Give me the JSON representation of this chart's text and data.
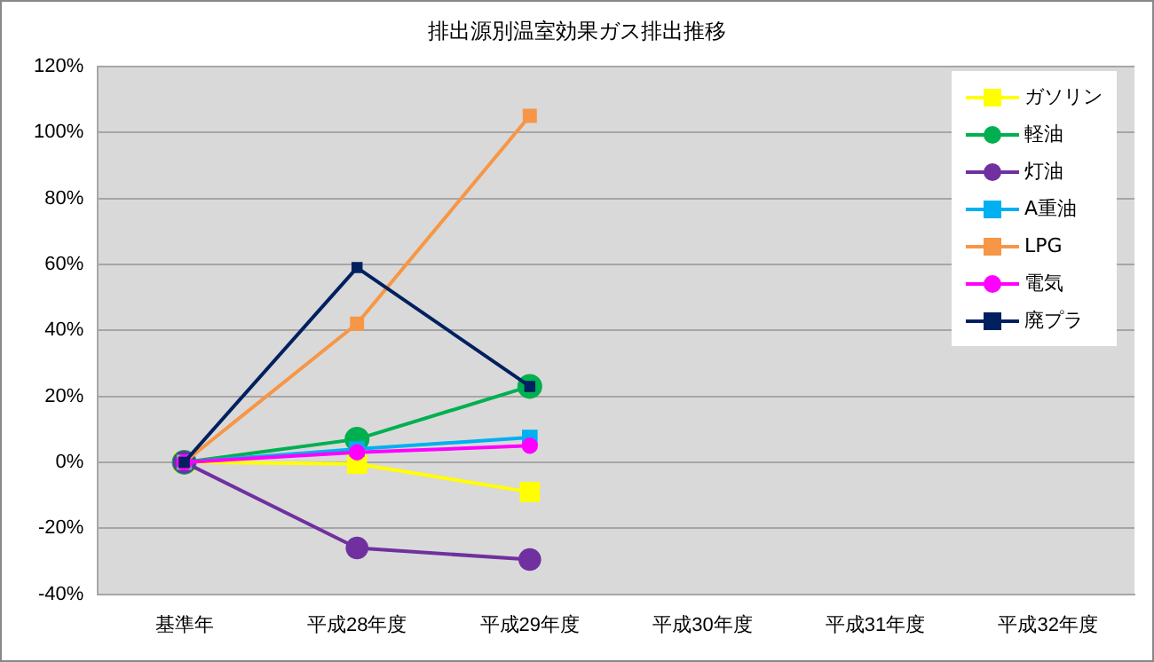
{
  "chart_data": {
    "type": "line",
    "title": "排出源別温室効果ガス排出推移",
    "categories": [
      "基準年",
      "平成28年度",
      "平成29年度",
      "平成30年度",
      "平成31年度",
      "平成32年度"
    ],
    "series": [
      {
        "name": "ガソリン",
        "color": "#ffff00",
        "marker": "square",
        "values": [
          0,
          -0.5,
          -9,
          null,
          null,
          null
        ]
      },
      {
        "name": "軽油",
        "color": "#00b050",
        "marker": "circle",
        "values": [
          0,
          7,
          23,
          null,
          null,
          null
        ]
      },
      {
        "name": "灯油",
        "color": "#7030a0",
        "marker": "circle",
        "values": [
          0,
          -26,
          -29.5,
          null,
          null,
          null
        ]
      },
      {
        "name": "A重油",
        "color": "#00b0f0",
        "marker": "square",
        "values": [
          0,
          4,
          7.5,
          null,
          null,
          null
        ]
      },
      {
        "name": "LPG",
        "color": "#f79646",
        "marker": "square",
        "values": [
          0,
          42,
          105,
          null,
          null,
          null
        ]
      },
      {
        "name": "電気",
        "color": "#ff00ff",
        "marker": "circle",
        "values": [
          0,
          3,
          5,
          null,
          null,
          null
        ]
      },
      {
        "name": "廃プラ",
        "color": "#002060",
        "marker": "square",
        "values": [
          0,
          59,
          23,
          null,
          null,
          null
        ]
      }
    ],
    "ylim": [
      -40,
      120
    ],
    "yticks": [
      {
        "value": -40,
        "label": "-40%"
      },
      {
        "value": -20,
        "label": "-20%"
      },
      {
        "value": 0,
        "label": "0%"
      },
      {
        "value": 20,
        "label": "20%"
      },
      {
        "value": 40,
        "label": "40%"
      },
      {
        "value": 60,
        "label": "60%"
      },
      {
        "value": 80,
        "label": "80%"
      },
      {
        "value": 100,
        "label": "100%"
      },
      {
        "value": 120,
        "label": "120%"
      }
    ],
    "grid": "y",
    "legend": "top right",
    "line_style": "solid"
  }
}
